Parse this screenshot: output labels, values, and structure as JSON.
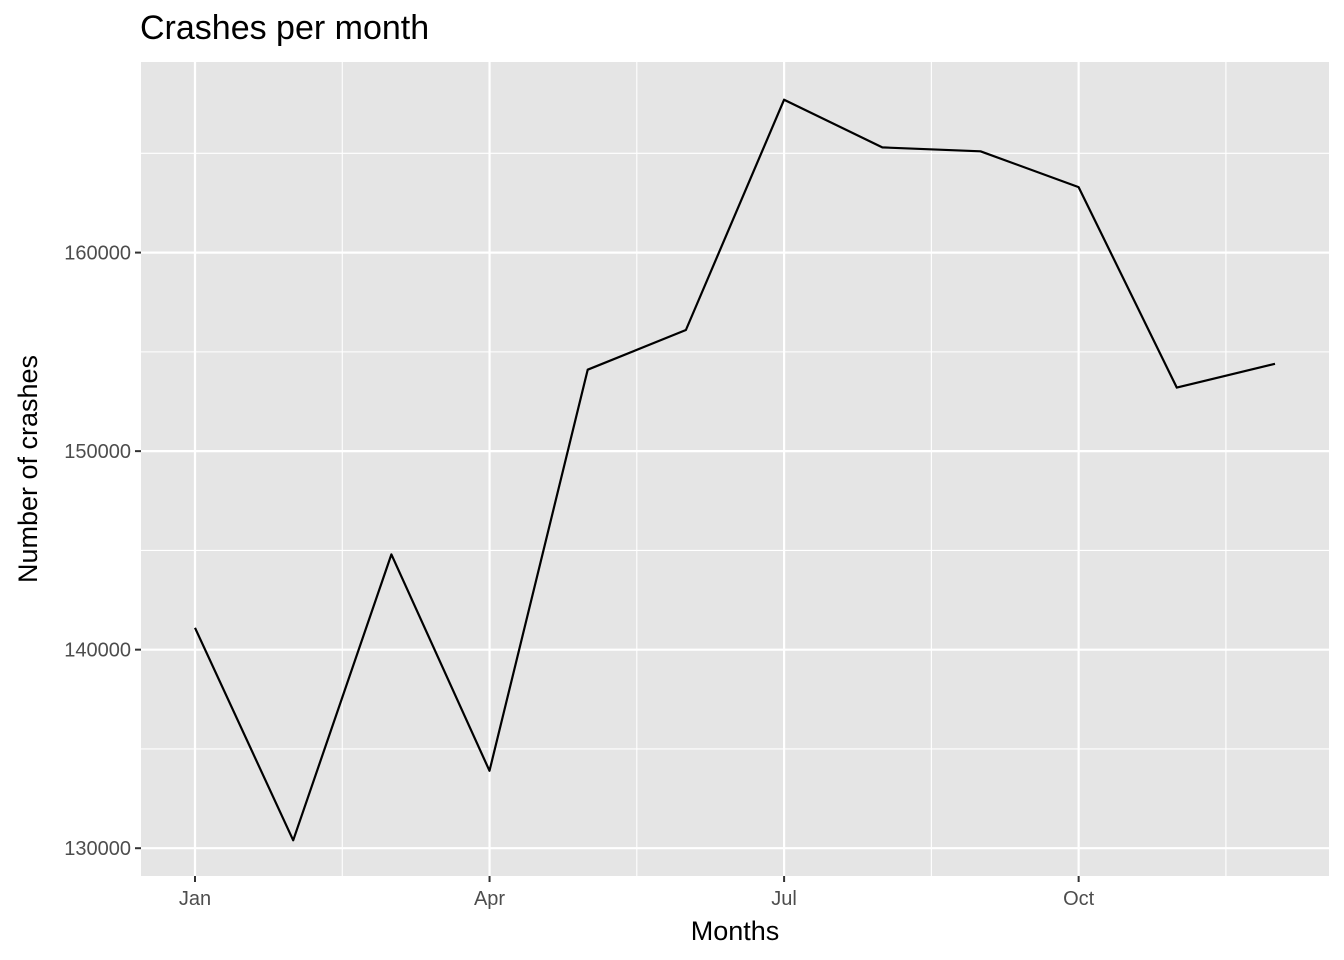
{
  "chart_data": {
    "type": "line",
    "title": "Crashes per month",
    "xlabel": "Months",
    "ylabel": "Number of crashes",
    "x": [
      1,
      2,
      3,
      4,
      5,
      6,
      7,
      8,
      9,
      10,
      11,
      12
    ],
    "x_ticks": [
      {
        "value": 1,
        "label": "Jan"
      },
      {
        "value": 4,
        "label": "Apr"
      },
      {
        "value": 7,
        "label": "Jul"
      },
      {
        "value": 10,
        "label": "Oct"
      }
    ],
    "y_ticks": [
      130000,
      140000,
      150000,
      160000
    ],
    "series": [
      {
        "values": [
          141100,
          130400,
          144800,
          133900,
          154100,
          156100,
          167700,
          165300,
          165100,
          163300,
          153200,
          154400
        ]
      }
    ],
    "xlim": [
      0.45,
      12.55
    ],
    "ylim": [
      128600,
      169600
    ],
    "grid": true,
    "background": "#e5e5e5",
    "grid_color": "#ffffff",
    "line_color": "#000000"
  }
}
